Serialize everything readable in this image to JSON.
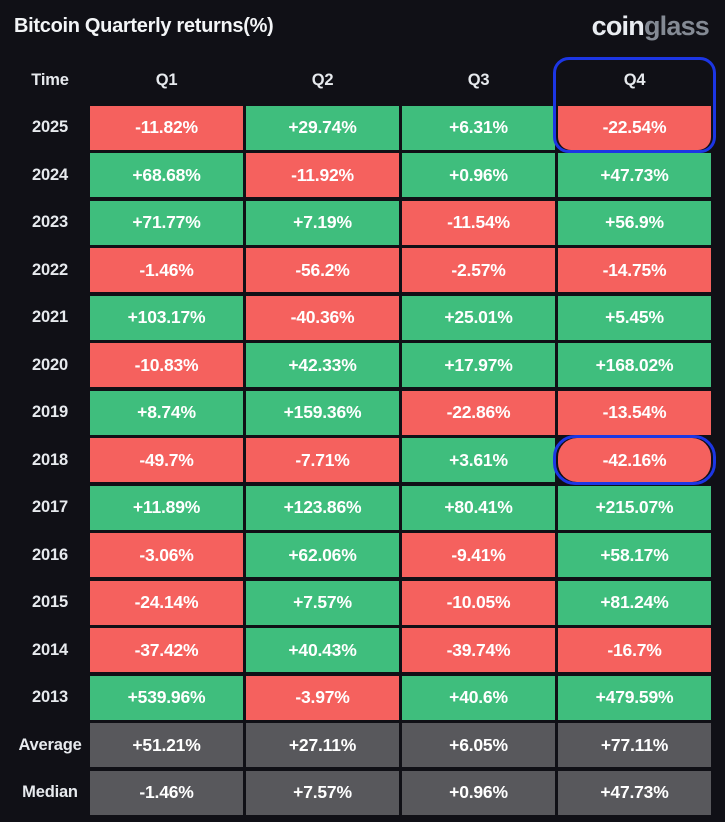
{
  "header": {
    "title": "Bitcoin Quarterly returns(%)",
    "logo": {
      "part1": "coin",
      "part2": "glass"
    }
  },
  "chart_data": {
    "type": "table",
    "title": "Bitcoin Quarterly returns(%)",
    "columns": [
      "Time",
      "Q1",
      "Q2",
      "Q3",
      "Q4"
    ],
    "rows": [
      {
        "label": "2025",
        "values": [
          "-11.82%",
          "+29.74%",
          "+6.31%",
          "-22.54%"
        ],
        "colors": [
          "red",
          "green",
          "green",
          "red"
        ]
      },
      {
        "label": "2024",
        "values": [
          "+68.68%",
          "-11.92%",
          "+0.96%",
          "+47.73%"
        ],
        "colors": [
          "green",
          "red",
          "green",
          "green"
        ]
      },
      {
        "label": "2023",
        "values": [
          "+71.77%",
          "+7.19%",
          "-11.54%",
          "+56.9%"
        ],
        "colors": [
          "green",
          "green",
          "red",
          "green"
        ]
      },
      {
        "label": "2022",
        "values": [
          "-1.46%",
          "-56.2%",
          "-2.57%",
          "-14.75%"
        ],
        "colors": [
          "red",
          "red",
          "red",
          "red"
        ]
      },
      {
        "label": "2021",
        "values": [
          "+103.17%",
          "-40.36%",
          "+25.01%",
          "+5.45%"
        ],
        "colors": [
          "green",
          "red",
          "green",
          "green"
        ]
      },
      {
        "label": "2020",
        "values": [
          "-10.83%",
          "+42.33%",
          "+17.97%",
          "+168.02%"
        ],
        "colors": [
          "red",
          "green",
          "green",
          "green"
        ]
      },
      {
        "label": "2019",
        "values": [
          "+8.74%",
          "+159.36%",
          "-22.86%",
          "-13.54%"
        ],
        "colors": [
          "green",
          "green",
          "red",
          "red"
        ]
      },
      {
        "label": "2018",
        "values": [
          "-49.7%",
          "-7.71%",
          "+3.61%",
          "-42.16%"
        ],
        "colors": [
          "red",
          "red",
          "green",
          "red"
        ]
      },
      {
        "label": "2017",
        "values": [
          "+11.89%",
          "+123.86%",
          "+80.41%",
          "+215.07%"
        ],
        "colors": [
          "green",
          "green",
          "green",
          "green"
        ]
      },
      {
        "label": "2016",
        "values": [
          "-3.06%",
          "+62.06%",
          "-9.41%",
          "+58.17%"
        ],
        "colors": [
          "red",
          "green",
          "red",
          "green"
        ]
      },
      {
        "label": "2015",
        "values": [
          "-24.14%",
          "+7.57%",
          "-10.05%",
          "+81.24%"
        ],
        "colors": [
          "red",
          "green",
          "red",
          "green"
        ]
      },
      {
        "label": "2014",
        "values": [
          "-37.42%",
          "+40.43%",
          "-39.74%",
          "-16.7%"
        ],
        "colors": [
          "red",
          "green",
          "red",
          "red"
        ]
      },
      {
        "label": "2013",
        "values": [
          "+539.96%",
          "-3.97%",
          "+40.6%",
          "+479.59%"
        ],
        "colors": [
          "green",
          "red",
          "green",
          "green"
        ]
      },
      {
        "label": "Average",
        "values": [
          "+51.21%",
          "+27.11%",
          "+6.05%",
          "+77.11%"
        ],
        "colors": [
          "gray",
          "gray",
          "gray",
          "gray"
        ]
      },
      {
        "label": "Median",
        "values": [
          "-1.46%",
          "+7.57%",
          "+0.96%",
          "+47.73%"
        ],
        "colors": [
          "gray",
          "gray",
          "gray",
          "gray"
        ]
      }
    ],
    "highlights": [
      {
        "name": "highlight-q4-2025",
        "row": 0,
        "col": 3,
        "include_header": true,
        "radius": 16
      },
      {
        "name": "highlight-q4-2018",
        "row": 7,
        "col": 3,
        "include_header": false,
        "radius": 22
      }
    ],
    "legend_position": "none",
    "grid": false
  },
  "colors": {
    "background": "#101016",
    "positive": "#3fbe7d",
    "negative": "#f5615e",
    "neutral": "#58585c",
    "highlight_border": "#1c36e4",
    "text": "#ffffff"
  }
}
